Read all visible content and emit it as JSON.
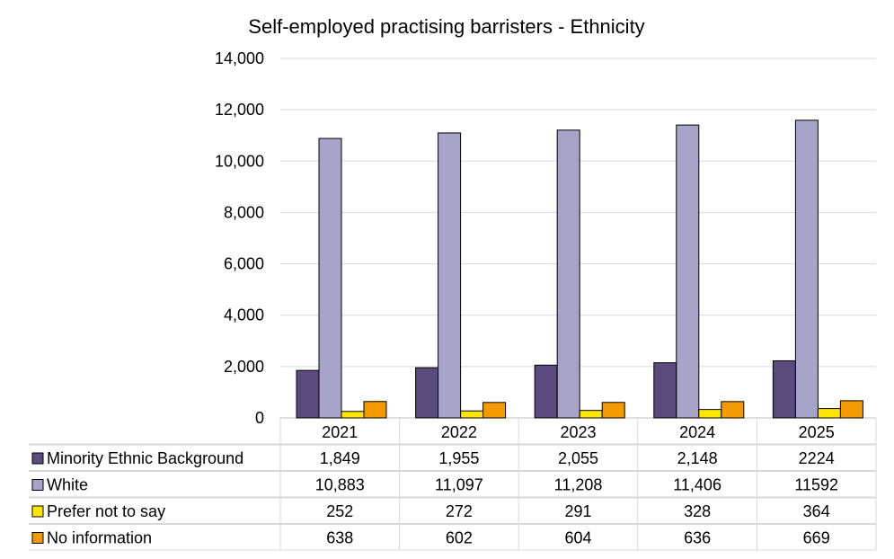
{
  "chart_data": {
    "type": "bar",
    "title": "Self-employed practising barristers - Ethnicity",
    "xlabel": "",
    "ylabel": "",
    "ylim": [
      0,
      14000
    ],
    "yticks": [
      0,
      2000,
      4000,
      6000,
      8000,
      10000,
      12000,
      14000
    ],
    "ytick_labels": [
      "0",
      "2,000",
      "4,000",
      "6,000",
      "8,000",
      "10,000",
      "12,000",
      "14,000"
    ],
    "grid": true,
    "legend": "bottom-data-table",
    "categories": [
      "2021",
      "2022",
      "2023",
      "2024",
      "2025"
    ],
    "series": [
      {
        "name": "Minority Ethnic Background",
        "color": "#5b4a7e",
        "values": [
          1849,
          1955,
          2055,
          2148,
          2224
        ],
        "labels": [
          "1,849",
          "1,955",
          "2,055",
          "2,148",
          "2224"
        ]
      },
      {
        "name": "White",
        "color": "#a6a4c8",
        "values": [
          10883,
          11097,
          11208,
          11406,
          11592
        ],
        "labels": [
          "10,883",
          "11,097",
          "11,208",
          "11,406",
          "11592"
        ]
      },
      {
        "name": "Prefer not to say",
        "color": "#ffe600",
        "values": [
          252,
          272,
          291,
          328,
          364
        ],
        "labels": [
          "252",
          "272",
          "291",
          "328",
          "364"
        ]
      },
      {
        "name": "No information",
        "color": "#f29a00",
        "values": [
          638,
          602,
          604,
          636,
          669
        ],
        "labels": [
          "638",
          "602",
          "604",
          "636",
          "669"
        ]
      }
    ]
  }
}
